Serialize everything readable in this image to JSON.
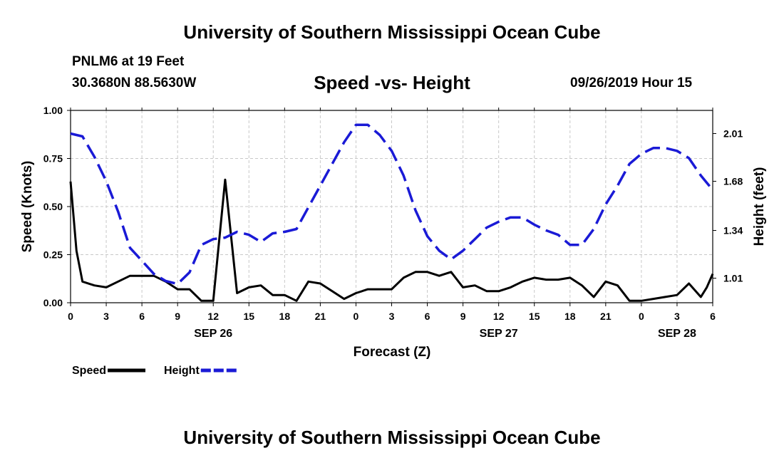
{
  "header": {
    "main_title": "University of Southern Mississippi Ocean Cube",
    "station": "PNLM6 at 19 Feet",
    "coords": "30.3680N 88.5630W",
    "subtitle": "Speed -vs- Height",
    "date": "09/26/2019 Hour 15"
  },
  "footer": {
    "title": "University of Southern Mississippi Ocean Cube"
  },
  "colors": {
    "speed": "#000000",
    "height": "#1a1ad6",
    "grid": "#c8c8c8"
  },
  "chart_data": {
    "type": "line",
    "title": "Speed -vs- Height",
    "xlabel": "Forecast (Z)",
    "ylabel_left": "Speed (Knots)",
    "ylabel_right": "Height (feet)",
    "xlim": [
      0,
      54
    ],
    "ylim_left": [
      0,
      1.0
    ],
    "ylim_right": [
      0.84,
      2.17
    ],
    "x_ticks": [
      {
        "x": 0,
        "label": "0"
      },
      {
        "x": 3,
        "label": "3"
      },
      {
        "x": 6,
        "label": "6"
      },
      {
        "x": 9,
        "label": "9"
      },
      {
        "x": 12,
        "label": "12"
      },
      {
        "x": 15,
        "label": "15"
      },
      {
        "x": 18,
        "label": "18"
      },
      {
        "x": 21,
        "label": "21"
      },
      {
        "x": 24,
        "label": "0"
      },
      {
        "x": 27,
        "label": "3"
      },
      {
        "x": 30,
        "label": "6"
      },
      {
        "x": 33,
        "label": "9"
      },
      {
        "x": 36,
        "label": "12"
      },
      {
        "x": 39,
        "label": "15"
      },
      {
        "x": 42,
        "label": "18"
      },
      {
        "x": 45,
        "label": "21"
      },
      {
        "x": 48,
        "label": "0"
      },
      {
        "x": 51,
        "label": "3"
      },
      {
        "x": 54,
        "label": "6"
      }
    ],
    "date_labels": [
      {
        "x": 12,
        "label": "SEP 26"
      },
      {
        "x": 36,
        "label": "SEP 27"
      },
      {
        "x": 51,
        "label": "SEP 28"
      }
    ],
    "y_ticks_left": [
      {
        "y": 0.0,
        "label": "0.00"
      },
      {
        "y": 0.25,
        "label": "0.25"
      },
      {
        "y": 0.5,
        "label": "0.50"
      },
      {
        "y": 0.75,
        "label": "0.75"
      },
      {
        "y": 1.0,
        "label": "1.00"
      }
    ],
    "y_ticks_right": [
      {
        "y": 1.01,
        "label": "1.01"
      },
      {
        "y": 1.34,
        "label": "1.34"
      },
      {
        "y": 1.68,
        "label": "1.68"
      },
      {
        "y": 2.01,
        "label": "2.01"
      }
    ],
    "series": [
      {
        "name": "Speed",
        "axis": "left",
        "style": "solid",
        "x": [
          0,
          0.5,
          1,
          2,
          3,
          4,
          5,
          6,
          7,
          8,
          9,
          10,
          11,
          12,
          13,
          14,
          15,
          16,
          17,
          18,
          19,
          20,
          21,
          22,
          23,
          24,
          25,
          26,
          27,
          28,
          29,
          30,
          31,
          32,
          33,
          34,
          35,
          36,
          37,
          38,
          39,
          40,
          41,
          42,
          43,
          44,
          45,
          46,
          47,
          48,
          49,
          50,
          51,
          52,
          53,
          53.5,
          54
        ],
        "values": [
          0.63,
          0.27,
          0.11,
          0.09,
          0.08,
          0.11,
          0.14,
          0.14,
          0.14,
          0.11,
          0.07,
          0.07,
          0.01,
          0.01,
          0.64,
          0.05,
          0.08,
          0.09,
          0.04,
          0.04,
          0.01,
          0.11,
          0.1,
          0.06,
          0.02,
          0.05,
          0.07,
          0.07,
          0.07,
          0.13,
          0.16,
          0.16,
          0.14,
          0.16,
          0.08,
          0.09,
          0.06,
          0.06,
          0.08,
          0.11,
          0.13,
          0.12,
          0.12,
          0.13,
          0.09,
          0.03,
          0.11,
          0.09,
          0.01,
          0.01,
          0.02,
          0.03,
          0.04,
          0.1,
          0.03,
          0.08,
          0.15
        ]
      },
      {
        "name": "Height",
        "axis": "right",
        "style": "dashed",
        "x": [
          0,
          1,
          2,
          3,
          4,
          5,
          6,
          7,
          8,
          9,
          10,
          11,
          12,
          13,
          14,
          15,
          16,
          17,
          18,
          19,
          20,
          21,
          22,
          23,
          24,
          25,
          26,
          27,
          28,
          29,
          30,
          31,
          32,
          33,
          34,
          35,
          36,
          37,
          38,
          39,
          40,
          41,
          42,
          43,
          44,
          45,
          46,
          47,
          48,
          49,
          50,
          51,
          52,
          53,
          54
        ],
        "values": [
          2.01,
          1.99,
          1.85,
          1.68,
          1.47,
          1.22,
          1.13,
          1.04,
          0.99,
          0.97,
          1.05,
          1.24,
          1.28,
          1.29,
          1.33,
          1.31,
          1.26,
          1.32,
          1.33,
          1.35,
          1.5,
          1.65,
          1.8,
          1.95,
          2.07,
          2.07,
          2.0,
          1.89,
          1.72,
          1.48,
          1.3,
          1.2,
          1.14,
          1.2,
          1.28,
          1.36,
          1.4,
          1.43,
          1.43,
          1.38,
          1.34,
          1.31,
          1.24,
          1.24,
          1.35,
          1.52,
          1.65,
          1.8,
          1.87,
          1.91,
          1.91,
          1.89,
          1.84,
          1.72,
          1.62
        ]
      }
    ],
    "legend": [
      {
        "label": "Speed",
        "series": "Speed"
      },
      {
        "label": "Height",
        "series": "Height"
      }
    ],
    "grid": true,
    "legend_position": "bottom-left"
  }
}
